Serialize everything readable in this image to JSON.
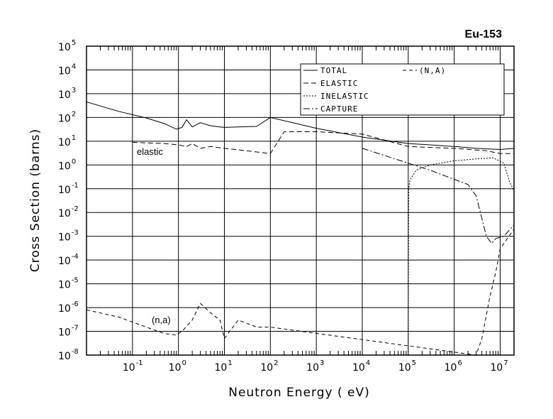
{
  "chart_data": {
    "type": "line",
    "title": "Eu-153",
    "xlabel": "Neutron Energy ( eV)",
    "ylabel": "Cross Section (barns)",
    "xscale": "log",
    "yscale": "log",
    "xlim": [
      0.01,
      20000000
    ],
    "ylim": [
      1e-08,
      100000
    ],
    "grid": true,
    "legend_position": "top-right",
    "x_tick_labels": [
      {
        "base": "10",
        "exp": "-1",
        "value": 0.1
      },
      {
        "base": "10",
        "exp": "0",
        "value": 1
      },
      {
        "base": "10",
        "exp": "1",
        "value": 10
      },
      {
        "base": "10",
        "exp": "2",
        "value": 100
      },
      {
        "base": "10",
        "exp": "3",
        "value": 1000
      },
      {
        "base": "10",
        "exp": "4",
        "value": 10000
      },
      {
        "base": "10",
        "exp": "5",
        "value": 100000
      },
      {
        "base": "10",
        "exp": "6",
        "value": 1000000
      },
      {
        "base": "10",
        "exp": "7",
        "value": 10000000
      }
    ],
    "y_tick_labels": [
      {
        "base": "10",
        "exp": "5",
        "value": 100000
      },
      {
        "base": "10",
        "exp": "4",
        "value": 10000
      },
      {
        "base": "10",
        "exp": "3",
        "value": 1000
      },
      {
        "base": "10",
        "exp": "2",
        "value": 100
      },
      {
        "base": "10",
        "exp": "1",
        "value": 10
      },
      {
        "base": "10",
        "exp": "0",
        "value": 1
      },
      {
        "base": "10",
        "exp": "-1",
        "value": 0.1
      },
      {
        "base": "10",
        "exp": "-2",
        "value": 0.01
      },
      {
        "base": "10",
        "exp": "-3",
        "value": 0.001
      },
      {
        "base": "10",
        "exp": "-4",
        "value": 0.0001
      },
      {
        "base": "10",
        "exp": "-5",
        "value": 1e-05
      },
      {
        "base": "10",
        "exp": "-6",
        "value": 1e-06
      },
      {
        "base": "10",
        "exp": "-7",
        "value": 1e-07
      },
      {
        "base": "10",
        "exp": "-8",
        "value": 1e-08
      }
    ],
    "annotations": [
      "elastic",
      "(n,a)"
    ],
    "series": [
      {
        "name": "TOTAL",
        "dash": "solid",
        "x": [
          0.01,
          0.05,
          0.2,
          0.5,
          0.9,
          1.2,
          1.5,
          2,
          3,
          5,
          8,
          10,
          20,
          50,
          100,
          1000,
          10000,
          100000,
          300000,
          1000000,
          3000000,
          10000000,
          20000000
        ],
        "y": [
          450,
          180,
          95,
          55,
          32,
          38,
          80,
          40,
          60,
          45,
          40,
          38,
          40,
          42,
          100,
          35,
          15,
          8,
          7,
          6,
          5,
          4.5,
          5
        ]
      },
      {
        "name": "ELASTIC",
        "dash": "dash",
        "x": [
          0.1,
          0.5,
          1,
          1.5,
          2,
          3,
          5,
          10,
          30,
          100,
          200,
          1000,
          10000,
          100000,
          1000000,
          5000000,
          10000000,
          20000000
        ],
        "y": [
          9,
          8,
          7,
          6,
          8,
          5,
          6,
          5,
          4,
          3,
          25,
          25,
          20,
          6,
          5,
          4,
          3,
          3
        ]
      },
      {
        "name": "INELASTIC",
        "dash": "dot",
        "x": [
          100000,
          102000,
          110000,
          150000,
          300000,
          1000000,
          3000000,
          7000000,
          12000000,
          16000000,
          20000000
        ],
        "y": [
          1e-08,
          0.1,
          0.25,
          0.6,
          1,
          1.5,
          1.8,
          2,
          1.2,
          0.2,
          0.08
        ]
      },
      {
        "name": "CAPTURE",
        "dash": "dashdot",
        "x": [
          10000,
          100000,
          300000,
          1000000,
          2000000,
          3000000,
          5000000,
          6500000,
          8000000,
          12000000,
          20000000
        ],
        "y": [
          5,
          1.2,
          0.6,
          0.25,
          0.15,
          0.05,
          0.001,
          0.0005,
          0.0008,
          0.001,
          0.003
        ]
      },
      {
        "name": "(N,A)",
        "dash": "longdash",
        "x": [
          0.01,
          0.05,
          0.2,
          0.5,
          0.9,
          1.2,
          2,
          3,
          5,
          8,
          10,
          20,
          50,
          100,
          3000000,
          4000000,
          6000000,
          8000000,
          10000000,
          20000000
        ],
        "y": [
          8e-07,
          4e-07,
          1.5e-07,
          8e-08,
          7e-08,
          1e-07,
          3e-07,
          1.5e-06,
          6e-07,
          3e-07,
          5e-08,
          3e-07,
          1.5e-07,
          1.5e-07,
          1e-08,
          5e-08,
          3e-06,
          3e-05,
          0.0003,
          0.002
        ]
      }
    ]
  }
}
